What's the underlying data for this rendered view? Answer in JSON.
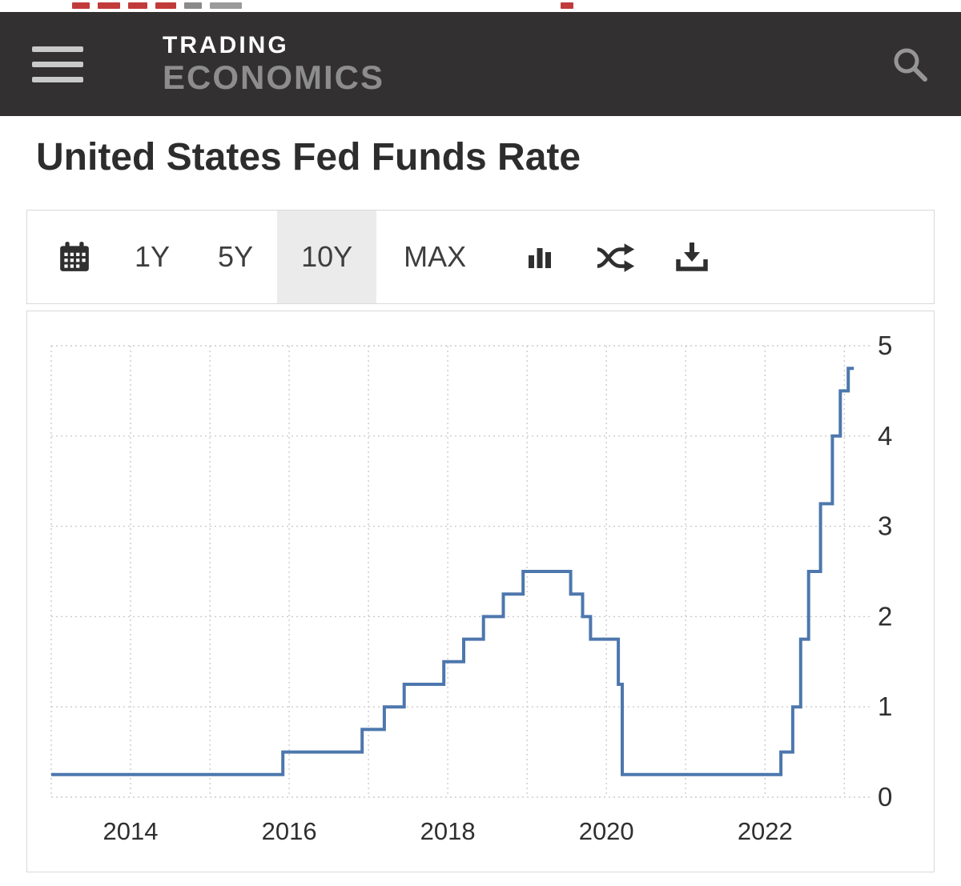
{
  "header": {
    "brand_line1": "TRADING",
    "brand_line2": "ECONOMICS"
  },
  "page": {
    "title": "United States Fed Funds Rate"
  },
  "toolbar": {
    "ranges": [
      {
        "label": "1Y",
        "selected": false
      },
      {
        "label": "5Y",
        "selected": false
      },
      {
        "label": "10Y",
        "selected": true
      },
      {
        "label": "MAX",
        "selected": false
      }
    ]
  },
  "icons": {
    "menu": "hamburger-icon",
    "search": "search-icon",
    "calendar": "calendar-icon",
    "chart_type": "bar-chart-icon",
    "compare": "shuffle-arrows-icon",
    "download": "download-icon"
  },
  "colors": {
    "header_bg": "#323031",
    "brand_secondary": "#8d8d8d",
    "title_text": "#2d2d2d",
    "line": "#4d77ad",
    "grid": "#cbcbcb",
    "border": "#d9d9d9",
    "selected_range_bg": "#ebebeb",
    "sliver_red": "#c23b3b"
  },
  "chart_data": {
    "type": "line",
    "line_style": "step-after",
    "title": "United States Fed Funds Rate",
    "series_name": "Fed Funds Rate (%)",
    "unit": "percent",
    "points": [
      [
        2013.0,
        0.25
      ],
      [
        2015.92,
        0.5
      ],
      [
        2016.92,
        0.75
      ],
      [
        2017.2,
        1.0
      ],
      [
        2017.45,
        1.25
      ],
      [
        2017.95,
        1.5
      ],
      [
        2018.2,
        1.75
      ],
      [
        2018.45,
        2.0
      ],
      [
        2018.7,
        2.25
      ],
      [
        2018.95,
        2.5
      ],
      [
        2019.55,
        2.25
      ],
      [
        2019.7,
        2.0
      ],
      [
        2019.8,
        1.75
      ],
      [
        2020.15,
        1.25
      ],
      [
        2020.2,
        0.25
      ],
      [
        2022.2,
        0.5
      ],
      [
        2022.35,
        1.0
      ],
      [
        2022.45,
        1.75
      ],
      [
        2022.55,
        2.5
      ],
      [
        2022.7,
        3.25
      ],
      [
        2022.85,
        4.0
      ],
      [
        2022.95,
        4.5
      ],
      [
        2023.05,
        4.75
      ],
      [
        2023.12,
        4.75
      ]
    ],
    "last_value": 4.75,
    "xlim": [
      2013,
      2023.3
    ],
    "ylim": [
      0,
      5
    ],
    "yticks": [
      0,
      1,
      2,
      3,
      4,
      5
    ],
    "yaxis_side": "right",
    "xticks_labeled": [
      2014,
      2016,
      2018,
      2020,
      2022
    ],
    "xgrid_years": [
      2013,
      2014,
      2015,
      2016,
      2017,
      2018,
      2019,
      2020,
      2021,
      2022,
      2023
    ],
    "grid_style": "dotted",
    "legend": "none"
  }
}
